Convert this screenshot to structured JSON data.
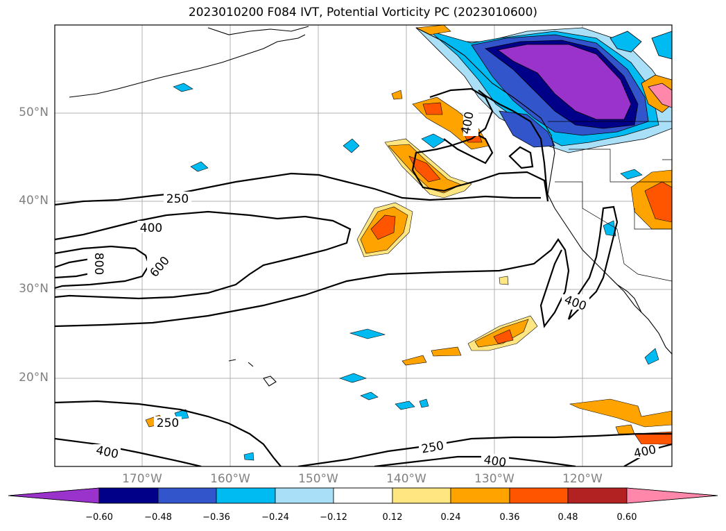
{
  "title": "2023010200 F084 IVT, Potential Vorticity PC (2023010600)",
  "lat_labels": [
    "50°N",
    "40°N",
    "30°N",
    "20°N"
  ],
  "lon_labels": [
    "170°W",
    "160°W",
    "150°W",
    "140°W",
    "130°W",
    "120°W"
  ],
  "contour_labels": {
    "l250a": "250",
    "l400a": "400",
    "l800": "800",
    "l600": "600",
    "l400b": "400",
    "l400c": "400",
    "l250b": "250",
    "l400d": "400",
    "l250c": "250",
    "l400e": "400",
    "l400f": "400"
  },
  "colorbar": {
    "ticks": [
      "−0.60",
      "−0.48",
      "−0.36",
      "−0.24",
      "−0.12",
      "0.12",
      "0.24",
      "0.36",
      "0.48",
      "0.60"
    ],
    "colors": [
      "#9933cc",
      "#000088",
      "#3355cc",
      "#00bbf2",
      "#aadff8",
      "#ffffff",
      "#ffe680",
      "#ffa300",
      "#ff5500",
      "#b22222",
      "#ff88aa"
    ]
  },
  "colors": {
    "neg_strong": "#9933cc",
    "neg2": "#000088",
    "neg3": "#3355cc",
    "neg4": "#00bbf2",
    "neg5": "#aadff8",
    "pos1": "#ffe680",
    "pos2": "#ffa300",
    "pos3": "#ff5500",
    "pos4": "#b22222",
    "pos5": "#ff88aa"
  }
}
